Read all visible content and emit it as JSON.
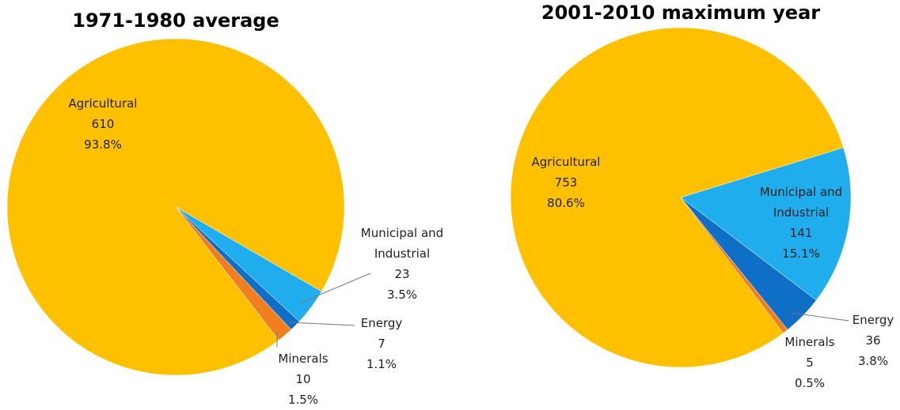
{
  "chart_data": [
    {
      "type": "pie",
      "title": "1971-1980 average",
      "categories": [
        "Agricultural",
        "Municipal and Industrial",
        "Energy",
        "Minerals"
      ],
      "values": [
        610,
        23,
        7,
        10
      ],
      "percent_labels": [
        "93.8%",
        "3.5%",
        "1.1%",
        "1.5%"
      ],
      "colors": [
        "#ffc000",
        "#1fadee",
        "#0f6fc6",
        "#f07f21"
      ]
    },
    {
      "type": "pie",
      "title": "2001-2010 maximum year",
      "categories": [
        "Agricultural",
        "Municipal and Industrial",
        "Energy",
        "Minerals"
      ],
      "values": [
        753,
        141,
        36,
        5
      ],
      "percent_labels": [
        "80.6%",
        "15.1%",
        "3.8%",
        "0.5%"
      ],
      "colors": [
        "#ffc000",
        "#1fadee",
        "#0f6fc6",
        "#f07f21"
      ]
    }
  ]
}
